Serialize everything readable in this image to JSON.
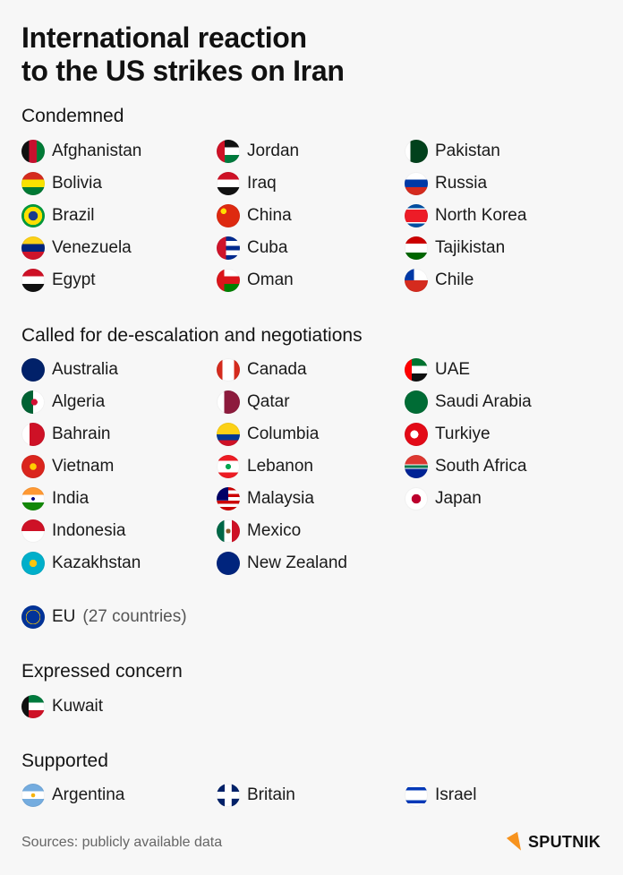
{
  "title_line1": "International reaction",
  "title_line2": "to the US strikes on Iran",
  "sections": [
    {
      "heading": "Condemned",
      "rows": 5,
      "items": [
        {
          "name": "Afghanistan",
          "flag": "afghanistan"
        },
        {
          "name": "Bolivia",
          "flag": "bolivia"
        },
        {
          "name": "Brazil",
          "flag": "brazil"
        },
        {
          "name": "Venezuela",
          "flag": "venezuela"
        },
        {
          "name": "Egypt",
          "flag": "egypt"
        },
        {
          "name": "Jordan",
          "flag": "jordan"
        },
        {
          "name": "Iraq",
          "flag": "iraq"
        },
        {
          "name": "China",
          "flag": "china"
        },
        {
          "name": "Cuba",
          "flag": "cuba"
        },
        {
          "name": "Oman",
          "flag": "oman"
        },
        {
          "name": "Pakistan",
          "flag": "pakistan"
        },
        {
          "name": "Russia",
          "flag": "russia"
        },
        {
          "name": "North Korea",
          "flag": "north-korea"
        },
        {
          "name": "Tajikistan",
          "flag": "tajikistan"
        },
        {
          "name": "Chile",
          "flag": "chile"
        }
      ]
    },
    {
      "heading": "Called for de-escalation and negotiations",
      "rows": 7,
      "items": [
        {
          "name": "Australia",
          "flag": "australia"
        },
        {
          "name": "Algeria",
          "flag": "algeria"
        },
        {
          "name": "Bahrain",
          "flag": "bahrain"
        },
        {
          "name": "Vietnam",
          "flag": "vietnam"
        },
        {
          "name": "India",
          "flag": "india"
        },
        {
          "name": "Indonesia",
          "flag": "indonesia"
        },
        {
          "name": "Kazakhstan",
          "flag": "kazakhstan"
        },
        {
          "name": "Canada",
          "flag": "canada"
        },
        {
          "name": "Qatar",
          "flag": "qatar"
        },
        {
          "name": "Columbia",
          "flag": "colombia"
        },
        {
          "name": "Lebanon",
          "flag": "lebanon"
        },
        {
          "name": "Malaysia",
          "flag": "malaysia"
        },
        {
          "name": "Mexico",
          "flag": "mexico"
        },
        {
          "name": "New Zealand",
          "flag": "new-zealand"
        },
        {
          "name": "UAE",
          "flag": "uae"
        },
        {
          "name": "Saudi Arabia",
          "flag": "saudi-arabia"
        },
        {
          "name": "Turkiye",
          "flag": "turkiye"
        },
        {
          "name": "South Africa",
          "flag": "south-africa"
        },
        {
          "name": "Japan",
          "flag": "japan"
        }
      ],
      "extra": {
        "name": "EU",
        "note": "(27 countries)",
        "flag": "eu"
      }
    },
    {
      "heading": "Expressed concern",
      "rows": 1,
      "items": [
        {
          "name": "Kuwait",
          "flag": "kuwait"
        }
      ]
    },
    {
      "heading": "Supported",
      "rows": 1,
      "items": [
        {
          "name": "Argentina",
          "flag": "argentina"
        },
        {
          "name": "Britain",
          "flag": "britain"
        },
        {
          "name": "Israel",
          "flag": "israel"
        }
      ]
    }
  ],
  "footer": {
    "sources": "Sources: publicly available data",
    "logo_text": "SPUTNIK",
    "logo_color": "#f7931e"
  }
}
